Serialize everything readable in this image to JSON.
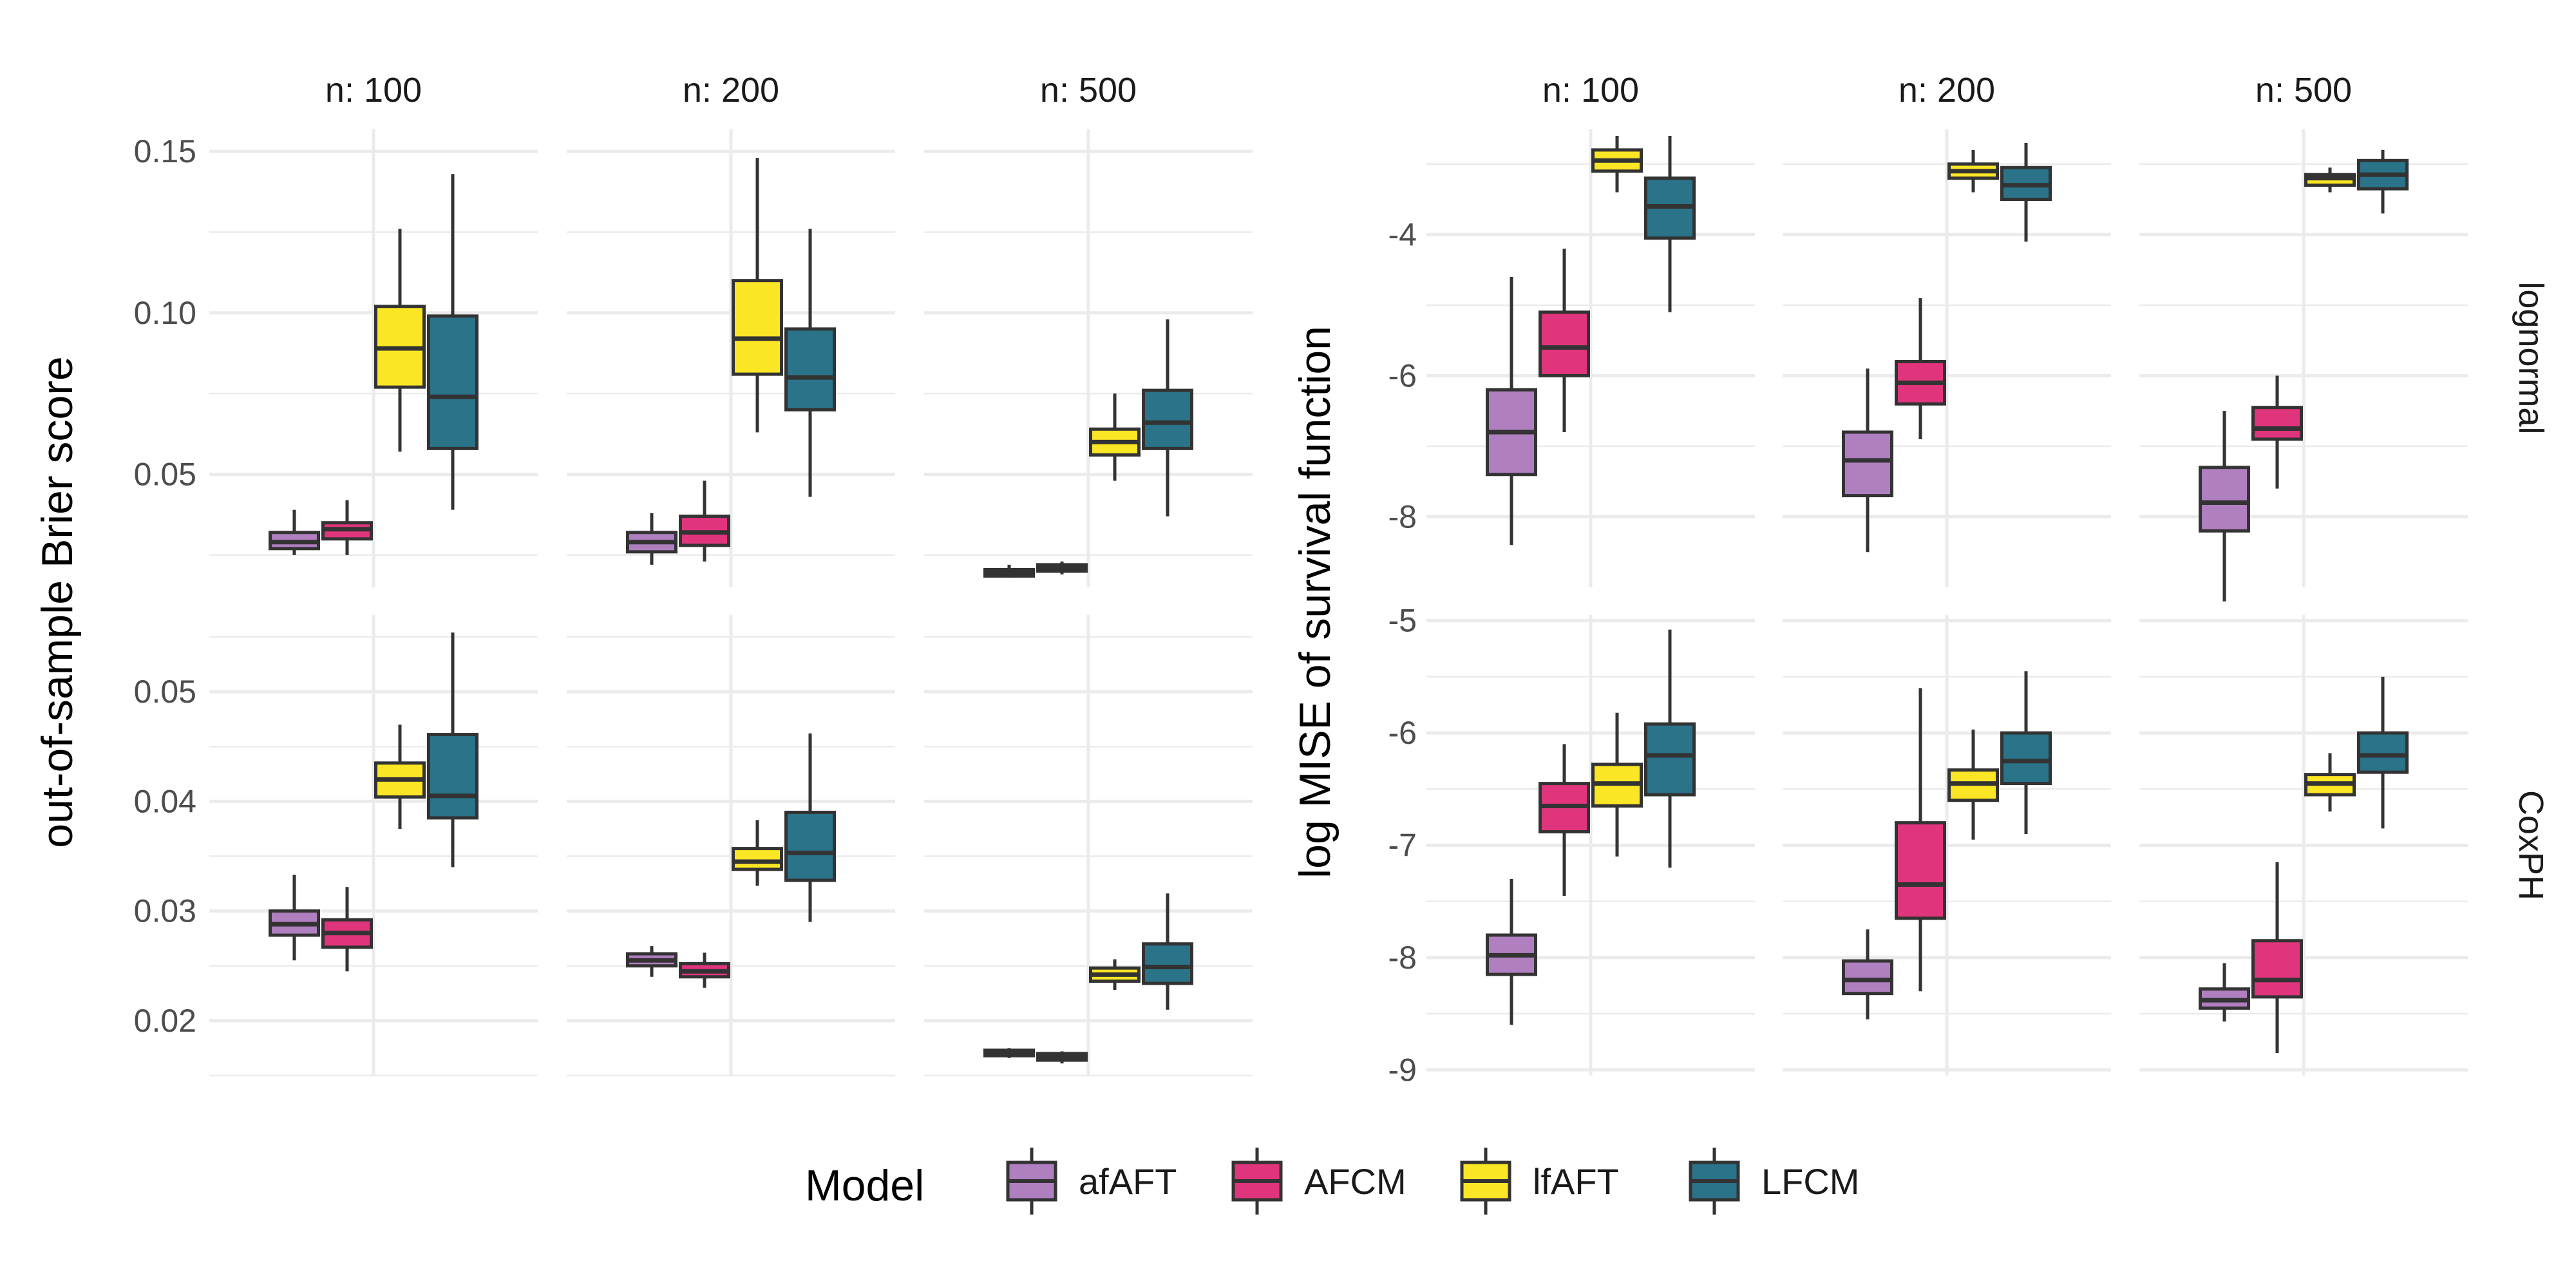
{
  "legend": {
    "title": "Model",
    "items": [
      {
        "key": "afAFT",
        "label": "afAFT",
        "color": "#b07fc0"
      },
      {
        "key": "AFCM",
        "label": "AFCM",
        "color": "#e0357c"
      },
      {
        "key": "lfAFT",
        "label": "lfAFT",
        "color": "#fbe626"
      },
      {
        "key": "LFCM",
        "label": "LFCM",
        "color": "#2a7389"
      }
    ]
  },
  "colors": {
    "box_stroke": "#333333",
    "grid": "#ebebeb",
    "background": "#ffffff"
  },
  "chart_data": [
    {
      "type": "boxplot",
      "id": "brier",
      "ylabel": "out-of-sample Brier score",
      "facet_columns": [
        "n: 100",
        "n: 200",
        "n: 500"
      ],
      "facet_rows": [
        "lognormal",
        "CoxPH"
      ],
      "show_row_strips": false,
      "categories": [
        "afAFT",
        "AFCM",
        "lfAFT",
        "LFCM"
      ],
      "rows": [
        {
          "row": "lognormal",
          "ylim": [
            0.015,
            0.157
          ],
          "yticks": [
            0.05,
            0.1,
            0.15
          ],
          "yticklabels": [
            "0.05",
            "0.10",
            "0.15"
          ],
          "panels": [
            {
              "facet": "n: 100",
              "boxes": [
                {
                  "model": "afAFT",
                  "min": 0.025,
                  "q1": 0.027,
                  "median": 0.029,
                  "q3": 0.032,
                  "max": 0.039
                },
                {
                  "model": "AFCM",
                  "min": 0.025,
                  "q1": 0.03,
                  "median": 0.033,
                  "q3": 0.035,
                  "max": 0.042
                },
                {
                  "model": "lfAFT",
                  "min": 0.057,
                  "q1": 0.077,
                  "median": 0.089,
                  "q3": 0.102,
                  "max": 0.126
                },
                {
                  "model": "LFCM",
                  "min": 0.039,
                  "q1": 0.058,
                  "median": 0.074,
                  "q3": 0.099,
                  "max": 0.143
                }
              ]
            },
            {
              "facet": "n: 200",
              "boxes": [
                {
                  "model": "afAFT",
                  "min": 0.022,
                  "q1": 0.026,
                  "median": 0.029,
                  "q3": 0.032,
                  "max": 0.038
                },
                {
                  "model": "AFCM",
                  "min": 0.023,
                  "q1": 0.028,
                  "median": 0.032,
                  "q3": 0.037,
                  "max": 0.048
                },
                {
                  "model": "lfAFT",
                  "min": 0.063,
                  "q1": 0.081,
                  "median": 0.092,
                  "q3": 0.11,
                  "max": 0.148
                },
                {
                  "model": "LFCM",
                  "min": 0.043,
                  "q1": 0.07,
                  "median": 0.08,
                  "q3": 0.095,
                  "max": 0.126
                }
              ]
            },
            {
              "facet": "n: 500",
              "boxes": [
                {
                  "model": "afAFT",
                  "min": 0.018,
                  "q1": 0.0185,
                  "median": 0.0195,
                  "q3": 0.0205,
                  "max": 0.022
                },
                {
                  "model": "AFCM",
                  "min": 0.019,
                  "q1": 0.02,
                  "median": 0.021,
                  "q3": 0.022,
                  "max": 0.023
                },
                {
                  "model": "lfAFT",
                  "min": 0.048,
                  "q1": 0.056,
                  "median": 0.06,
                  "q3": 0.064,
                  "max": 0.075
                },
                {
                  "model": "LFCM",
                  "min": 0.037,
                  "q1": 0.058,
                  "median": 0.066,
                  "q3": 0.076,
                  "max": 0.098
                }
              ]
            }
          ]
        },
        {
          "row": "CoxPH",
          "ylim": [
            0.015,
            0.057
          ],
          "yticks": [
            0.02,
            0.03,
            0.04,
            0.05
          ],
          "yticklabels": [
            "0.02",
            "0.03",
            "0.04",
            "0.05"
          ],
          "panels": [
            {
              "facet": "n: 100",
              "boxes": [
                {
                  "model": "afAFT",
                  "min": 0.0255,
                  "q1": 0.0278,
                  "median": 0.0288,
                  "q3": 0.03,
                  "max": 0.0333
                },
                {
                  "model": "AFCM",
                  "min": 0.0245,
                  "q1": 0.0267,
                  "median": 0.028,
                  "q3": 0.0292,
                  "max": 0.0322
                },
                {
                  "model": "lfAFT",
                  "min": 0.0375,
                  "q1": 0.0404,
                  "median": 0.042,
                  "q3": 0.0435,
                  "max": 0.047
                },
                {
                  "model": "LFCM",
                  "min": 0.034,
                  "q1": 0.0385,
                  "median": 0.0405,
                  "q3": 0.0461,
                  "max": 0.0554
                }
              ]
            },
            {
              "facet": "n: 200",
              "boxes": [
                {
                  "model": "afAFT",
                  "min": 0.024,
                  "q1": 0.025,
                  "median": 0.0255,
                  "q3": 0.0261,
                  "max": 0.0268
                },
                {
                  "model": "AFCM",
                  "min": 0.023,
                  "q1": 0.024,
                  "median": 0.0245,
                  "q3": 0.0252,
                  "max": 0.0262
                },
                {
                  "model": "lfAFT",
                  "min": 0.0323,
                  "q1": 0.0338,
                  "median": 0.0345,
                  "q3": 0.0357,
                  "max": 0.0383
                },
                {
                  "model": "LFCM",
                  "min": 0.029,
                  "q1": 0.0328,
                  "median": 0.0353,
                  "q3": 0.039,
                  "max": 0.0462
                }
              ]
            },
            {
              "facet": "n: 500",
              "boxes": [
                {
                  "model": "afAFT",
                  "min": 0.0166,
                  "q1": 0.0168,
                  "median": 0.0171,
                  "q3": 0.0173,
                  "max": 0.0175
                },
                {
                  "model": "AFCM",
                  "min": 0.0161,
                  "q1": 0.0164,
                  "median": 0.0167,
                  "q3": 0.017,
                  "max": 0.0172
                },
                {
                  "model": "lfAFT",
                  "min": 0.0228,
                  "q1": 0.0236,
                  "median": 0.0242,
                  "q3": 0.0248,
                  "max": 0.0256
                },
                {
                  "model": "LFCM",
                  "min": 0.021,
                  "q1": 0.0234,
                  "median": 0.0249,
                  "q3": 0.027,
                  "max": 0.0316
                }
              ]
            }
          ]
        }
      ]
    },
    {
      "type": "boxplot",
      "id": "mise",
      "ylabel": "log MISE of survival function",
      "facet_columns": [
        "n: 100",
        "n: 200",
        "n: 500"
      ],
      "facet_rows": [
        "lognormal",
        "CoxPH"
      ],
      "show_row_strips": true,
      "categories": [
        "afAFT",
        "AFCM",
        "lfAFT",
        "LFCM"
      ],
      "rows": [
        {
          "row": "lognormal",
          "ylim": [
            -9.0,
            -2.5
          ],
          "yticks": [
            -8,
            -6,
            -4
          ],
          "yticklabels": [
            "-8",
            "-6",
            "-4"
          ],
          "panels": [
            {
              "facet": "n: 100",
              "boxes": [
                {
                  "model": "afAFT",
                  "min": -8.4,
                  "q1": -7.4,
                  "median": -6.8,
                  "q3": -6.2,
                  "max": -4.6
                },
                {
                  "model": "AFCM",
                  "min": -6.8,
                  "q1": -6.0,
                  "median": -5.6,
                  "q3": -5.1,
                  "max": -4.2
                },
                {
                  "model": "lfAFT",
                  "min": -3.4,
                  "q1": -3.1,
                  "median": -2.95,
                  "q3": -2.8,
                  "max": -2.6
                },
                {
                  "model": "LFCM",
                  "min": -5.1,
                  "q1": -4.05,
                  "median": -3.6,
                  "q3": -3.2,
                  "max": -2.6
                }
              ]
            },
            {
              "facet": "n: 200",
              "boxes": [
                {
                  "model": "afAFT",
                  "min": -8.5,
                  "q1": -7.7,
                  "median": -7.2,
                  "q3": -6.8,
                  "max": -5.9
                },
                {
                  "model": "AFCM",
                  "min": -6.9,
                  "q1": -6.4,
                  "median": -6.1,
                  "q3": -5.8,
                  "max": -4.9
                },
                {
                  "model": "lfAFT",
                  "min": -3.4,
                  "q1": -3.2,
                  "median": -3.1,
                  "q3": -3.0,
                  "max": -2.8
                },
                {
                  "model": "LFCM",
                  "min": -4.1,
                  "q1": -3.5,
                  "median": -3.3,
                  "q3": -3.05,
                  "max": -2.7
                }
              ]
            },
            {
              "facet": "n: 500",
              "boxes": [
                {
                  "model": "afAFT",
                  "min": -9.2,
                  "q1": -8.2,
                  "median": -7.8,
                  "q3": -7.3,
                  "max": -6.5
                },
                {
                  "model": "AFCM",
                  "min": -7.6,
                  "q1": -6.9,
                  "median": -6.75,
                  "q3": -6.45,
                  "max": -6.0
                },
                {
                  "model": "lfAFT",
                  "min": -3.4,
                  "q1": -3.3,
                  "median": -3.2,
                  "q3": -3.15,
                  "max": -3.05
                },
                {
                  "model": "LFCM",
                  "min": -3.7,
                  "q1": -3.35,
                  "median": -3.15,
                  "q3": -2.95,
                  "max": -2.8
                }
              ]
            }
          ]
        },
        {
          "row": "CoxPH",
          "ylim": [
            -9.05,
            -4.95
          ],
          "yticks": [
            -9,
            -8,
            -7,
            -6,
            -5
          ],
          "yticklabels": [
            "-9",
            "-8",
            "-7",
            "-6",
            "-5"
          ],
          "panels": [
            {
              "facet": "n: 100",
              "boxes": [
                {
                  "model": "afAFT",
                  "min": -8.6,
                  "q1": -8.15,
                  "median": -7.98,
                  "q3": -7.8,
                  "max": -7.3
                },
                {
                  "model": "AFCM",
                  "min": -7.45,
                  "q1": -6.88,
                  "median": -6.65,
                  "q3": -6.45,
                  "max": -6.1
                },
                {
                  "model": "lfAFT",
                  "min": -7.1,
                  "q1": -6.65,
                  "median": -6.45,
                  "q3": -6.28,
                  "max": -5.82
                },
                {
                  "model": "LFCM",
                  "min": -7.2,
                  "q1": -6.55,
                  "median": -6.2,
                  "q3": -5.92,
                  "max": -5.08
                }
              ]
            },
            {
              "facet": "n: 200",
              "boxes": [
                {
                  "model": "afAFT",
                  "min": -8.55,
                  "q1": -8.32,
                  "median": -8.2,
                  "q3": -8.03,
                  "max": -7.75
                },
                {
                  "model": "AFCM",
                  "min": -8.3,
                  "q1": -7.65,
                  "median": -7.35,
                  "q3": -6.8,
                  "max": -5.6
                },
                {
                  "model": "lfAFT",
                  "min": -6.95,
                  "q1": -6.6,
                  "median": -6.45,
                  "q3": -6.33,
                  "max": -5.97
                },
                {
                  "model": "LFCM",
                  "min": -6.9,
                  "q1": -6.45,
                  "median": -6.25,
                  "q3": -6.0,
                  "max": -5.45
                }
              ]
            },
            {
              "facet": "n: 500",
              "boxes": [
                {
                  "model": "afAFT",
                  "min": -8.57,
                  "q1": -8.45,
                  "median": -8.38,
                  "q3": -8.28,
                  "max": -8.05
                },
                {
                  "model": "AFCM",
                  "min": -8.85,
                  "q1": -8.35,
                  "median": -8.2,
                  "q3": -7.85,
                  "max": -7.15
                },
                {
                  "model": "lfAFT",
                  "min": -6.7,
                  "q1": -6.55,
                  "median": -6.45,
                  "q3": -6.37,
                  "max": -6.18
                },
                {
                  "model": "LFCM",
                  "min": -6.85,
                  "q1": -6.35,
                  "median": -6.2,
                  "q3": -6.0,
                  "max": -5.5
                }
              ]
            }
          ]
        }
      ]
    }
  ]
}
